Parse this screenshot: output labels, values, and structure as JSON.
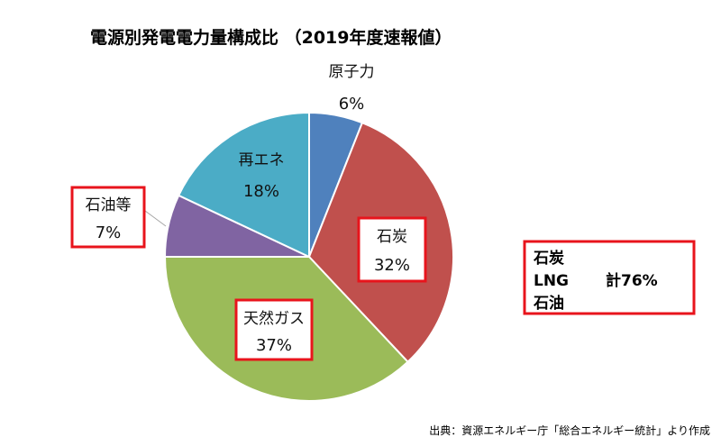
{
  "chart_data": {
    "type": "pie",
    "title": "電源別発電電力量構成比 （2019年度速報値）",
    "slices": [
      {
        "label": "原子力",
        "value": 6,
        "value_text": "6%",
        "color": "#4f81bd"
      },
      {
        "label": "石炭",
        "value": 32,
        "value_text": "32%",
        "color": "#c0504d"
      },
      {
        "label": "天然ガス",
        "value": 37,
        "value_text": "37%",
        "color": "#9bbb59"
      },
      {
        "label": "石油等",
        "value": 7,
        "value_text": "7%",
        "color": "#8064a2"
      },
      {
        "label": "再エネ",
        "value": 18,
        "value_text": "18%",
        "color": "#4bacc6"
      }
    ],
    "highlighted": [
      "石炭",
      "天然ガス",
      "石油等"
    ],
    "highlight_color": "#e8141c"
  },
  "summary": {
    "line1": "石炭",
    "line2": "LNG",
    "total": "計76%",
    "line3": "石油"
  },
  "source": "出典：資源エネルギー庁「総合エネルギー統計」より作成"
}
